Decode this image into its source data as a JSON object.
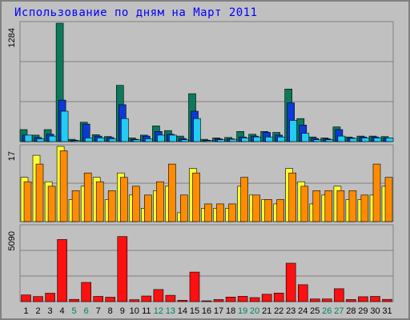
{
  "title": "Использование по дням на Март 2011",
  "colors": {
    "background": "#c0c0c0",
    "grid": "#808080",
    "hits": "#0b7a5a",
    "files": "#0b3ad6",
    "pages": "#22ccf2",
    "visits": "#ffff33",
    "sites": "#ff8c00",
    "kbytes": "#ff1010",
    "weekday_label": "#000000",
    "weekend_label": "#008060"
  },
  "chart_data": [
    {
      "type": "bar",
      "name": "top",
      "ymax_label": "1284",
      "ylim": [
        0,
        1284
      ],
      "categories": [
        "1",
        "2",
        "3",
        "4",
        "5",
        "6",
        "7",
        "8",
        "9",
        "10",
        "11",
        "12",
        "13",
        "14",
        "15",
        "16",
        "17",
        "18",
        "19",
        "20",
        "21",
        "22",
        "23",
        "24",
        "25",
        "26",
        "27",
        "28",
        "29",
        "30",
        "31"
      ],
      "series": [
        {
          "values": [
            130,
            70,
            130,
            1284,
            25,
            210,
            75,
            55,
            610,
            40,
            70,
            170,
            120,
            60,
            520,
            25,
            40,
            45,
            110,
            80,
            110,
            100,
            570,
            250,
            50,
            40,
            160,
            50,
            60,
            60,
            55
          ]
        },
        {
          "values": [
            70,
            45,
            80,
            450,
            15,
            190,
            60,
            45,
            400,
            25,
            60,
            110,
            80,
            35,
            330,
            15,
            30,
            30,
            50,
            60,
            100,
            70,
            420,
            180,
            35,
            30,
            130,
            40,
            50,
            50,
            40
          ]
        },
        {
          "values": [
            70,
            30,
            60,
            330,
            10,
            40,
            40,
            30,
            250,
            20,
            30,
            70,
            70,
            20,
            250,
            10,
            20,
            25,
            40,
            50,
            50,
            50,
            230,
            90,
            20,
            20,
            60,
            35,
            40,
            40,
            40
          ]
        }
      ]
    },
    {
      "type": "bar",
      "name": "middle",
      "ymax_label": "17",
      "ylim": [
        0,
        17
      ],
      "categories": [
        "1",
        "2",
        "3",
        "4",
        "5",
        "6",
        "7",
        "8",
        "9",
        "10",
        "11",
        "12",
        "13",
        "14",
        "15",
        "16",
        "17",
        "18",
        "19",
        "20",
        "21",
        "22",
        "23",
        "24",
        "25",
        "26",
        "27",
        "28",
        "29",
        "30",
        "31"
      ],
      "series": [
        {
          "values": [
            10,
            15,
            9,
            17,
            5,
            8,
            10,
            5,
            11,
            6,
            3,
            7,
            8,
            2,
            12,
            3,
            3,
            3,
            8,
            6,
            5,
            4,
            12,
            9,
            4,
            6,
            8,
            5,
            5,
            6,
            8
          ]
        },
        {
          "values": [
            9,
            13,
            8,
            16,
            7,
            11,
            9,
            7,
            10,
            8,
            6,
            9,
            13,
            6,
            11,
            4,
            4,
            4,
            10,
            6,
            5,
            5,
            11,
            8,
            7,
            7,
            7,
            7,
            6,
            13,
            10
          ]
        }
      ]
    },
    {
      "type": "bar",
      "name": "bottom",
      "ymax_label": "5090",
      "ylim": [
        0,
        5090
      ],
      "categories": [
        "1",
        "2",
        "3",
        "4",
        "5",
        "6",
        "7",
        "8",
        "9",
        "10",
        "11",
        "12",
        "13",
        "14",
        "15",
        "16",
        "17",
        "18",
        "19",
        "20",
        "21",
        "22",
        "23",
        "24",
        "25",
        "26",
        "27",
        "28",
        "29",
        "30",
        "31"
      ],
      "series": [
        {
          "values": [
            450,
            340,
            570,
            4200,
            150,
            1300,
            350,
            300,
            4400,
            130,
            380,
            820,
            430,
            90,
            2000,
            35,
            140,
            310,
            360,
            270,
            500,
            580,
            2600,
            1140,
            180,
            180,
            870,
            140,
            330,
            350,
            150
          ]
        }
      ]
    }
  ],
  "x_labels": [
    {
      "text": "1",
      "weekend": false
    },
    {
      "text": "2",
      "weekend": false
    },
    {
      "text": "3",
      "weekend": false
    },
    {
      "text": "4",
      "weekend": false
    },
    {
      "text": "5",
      "weekend": true
    },
    {
      "text": "6",
      "weekend": true
    },
    {
      "text": "7",
      "weekend": false
    },
    {
      "text": "8",
      "weekend": false
    },
    {
      "text": "9",
      "weekend": false
    },
    {
      "text": "10",
      "weekend": false
    },
    {
      "text": "11",
      "weekend": false
    },
    {
      "text": "12",
      "weekend": true
    },
    {
      "text": "13",
      "weekend": true
    },
    {
      "text": "14",
      "weekend": false
    },
    {
      "text": "15",
      "weekend": false
    },
    {
      "text": "16",
      "weekend": false
    },
    {
      "text": "17",
      "weekend": false
    },
    {
      "text": "18",
      "weekend": false
    },
    {
      "text": "19",
      "weekend": true
    },
    {
      "text": "20",
      "weekend": true
    },
    {
      "text": "21",
      "weekend": false
    },
    {
      "text": "22",
      "weekend": false
    },
    {
      "text": "23",
      "weekend": false
    },
    {
      "text": "24",
      "weekend": false
    },
    {
      "text": "25",
      "weekend": false
    },
    {
      "text": "26",
      "weekend": true
    },
    {
      "text": "27",
      "weekend": true
    },
    {
      "text": "28",
      "weekend": false
    },
    {
      "text": "29",
      "weekend": false
    },
    {
      "text": "30",
      "weekend": false
    },
    {
      "text": "31",
      "weekend": false
    }
  ]
}
